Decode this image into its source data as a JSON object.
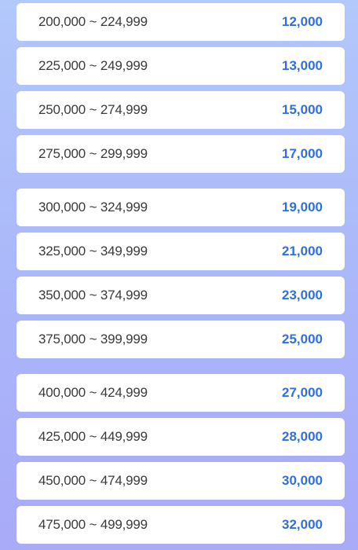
{
  "groups": [
    {
      "rows": [
        {
          "range": "200,000 ~ 224,999",
          "amount": "12,000"
        },
        {
          "range": "225,000 ~ 249,999",
          "amount": "13,000"
        },
        {
          "range": "250,000 ~ 274,999",
          "amount": "15,000"
        },
        {
          "range": "275,000 ~ 299,999",
          "amount": "17,000"
        }
      ]
    },
    {
      "rows": [
        {
          "range": "300,000 ~ 324,999",
          "amount": "19,000"
        },
        {
          "range": "325,000 ~ 349,999",
          "amount": "21,000"
        },
        {
          "range": "350,000 ~ 374,999",
          "amount": "23,000"
        },
        {
          "range": "375,000 ~ 399,999",
          "amount": "25,000"
        }
      ]
    },
    {
      "rows": [
        {
          "range": "400,000 ~ 424,999",
          "amount": "27,000"
        },
        {
          "range": "425,000 ~ 449,999",
          "amount": "28,000"
        },
        {
          "range": "450,000 ~ 474,999",
          "amount": "30,000"
        },
        {
          "range": "475,000 ~ 499,999",
          "amount": "32,000"
        }
      ]
    }
  ],
  "colors": {
    "amount": "#2f6fe0",
    "range_text": "#3a3a3a",
    "row_background": "#ffffff",
    "page_background_top": "#b3c8fb",
    "page_background_bottom": "#a9aaf8"
  }
}
